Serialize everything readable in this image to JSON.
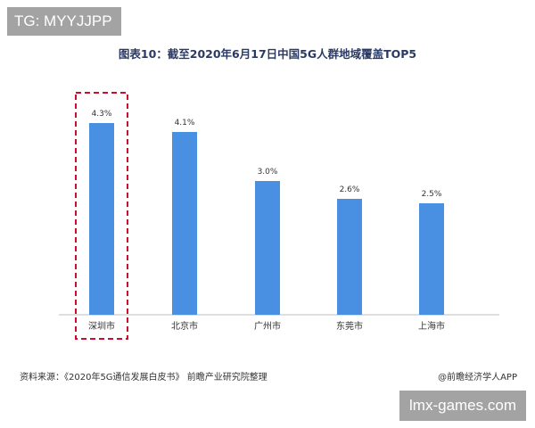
{
  "watermark_top_left": "TG: MYYJJPP",
  "watermark_bottom_right": "lmx-games.com",
  "footer": {
    "source": "资料来源：《2020年5G通信发展白皮书》 前瞻产业研究院整理",
    "credit": "@前瞻经济学人APP"
  },
  "colors": {
    "bar": "#4a90e2",
    "highlight": "#c8102e",
    "title": "#2b3a63"
  },
  "chart_data": {
    "type": "bar",
    "title": "图表10：截至2020年6月17日中国5G人群地域覆盖TOP5",
    "xlabel": "",
    "ylabel": "",
    "categories": [
      "深圳市",
      "北京市",
      "广州市",
      "东莞市",
      "上海市"
    ],
    "values": [
      4.3,
      4.1,
      3.0,
      2.6,
      2.5
    ],
    "value_labels": [
      "4.3%",
      "4.1%",
      "3.0%",
      "2.6%",
      "2.5%"
    ],
    "ylim": [
      0,
      5
    ],
    "grid": false,
    "highlighted_category": "深圳市"
  }
}
